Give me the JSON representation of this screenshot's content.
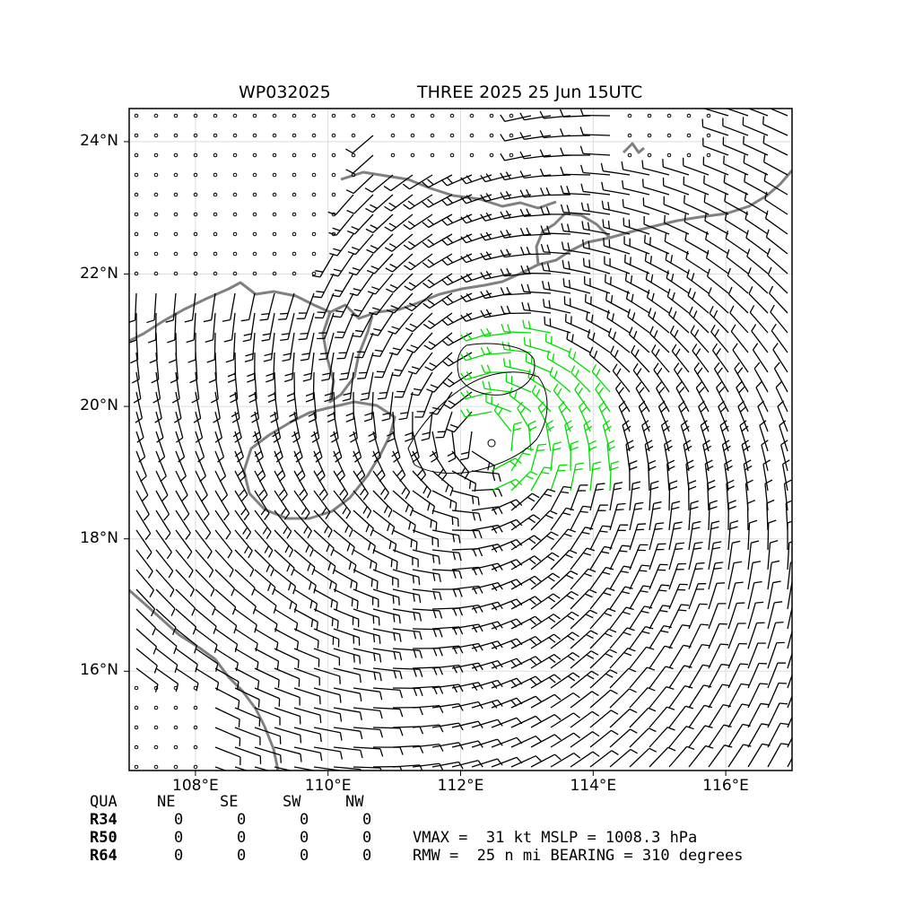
{
  "title": {
    "storm_id": "WP032025",
    "storm_info": "THREE 2025 25 Jun 15UTC"
  },
  "map": {
    "lon_range": [
      107,
      117
    ],
    "lat_range": [
      14.5,
      24.5
    ],
    "lat_ticks": [
      "16°N",
      "18°N",
      "20°N",
      "22°N",
      "24°N"
    ],
    "lon_ticks": [
      "108°E",
      "110°E",
      "112°E",
      "114°E",
      "116°E"
    ],
    "colors": {
      "coastline": "#808080",
      "barb": "#000000",
      "strong_barb": "#00dd00",
      "grid": "#dddddd"
    },
    "storm_center": {
      "lon": 112.4,
      "lat": 19.5
    }
  },
  "radii_table": {
    "headers": [
      "QUA",
      "NE",
      "SE",
      "SW",
      "NW"
    ],
    "rows": [
      {
        "label": "R34",
        "values": [
          "0",
          "0",
          "0",
          "0"
        ]
      },
      {
        "label": "R50",
        "values": [
          "0",
          "0",
          "0",
          "0"
        ]
      },
      {
        "label": "R64",
        "values": [
          "0",
          "0",
          "0",
          "0"
        ]
      }
    ]
  },
  "stats": {
    "line1": "VMAX =  31 kt MSLP = 1008.3 hPa",
    "line2": "RMW =  25 n mi BEARING = 310 degrees"
  }
}
